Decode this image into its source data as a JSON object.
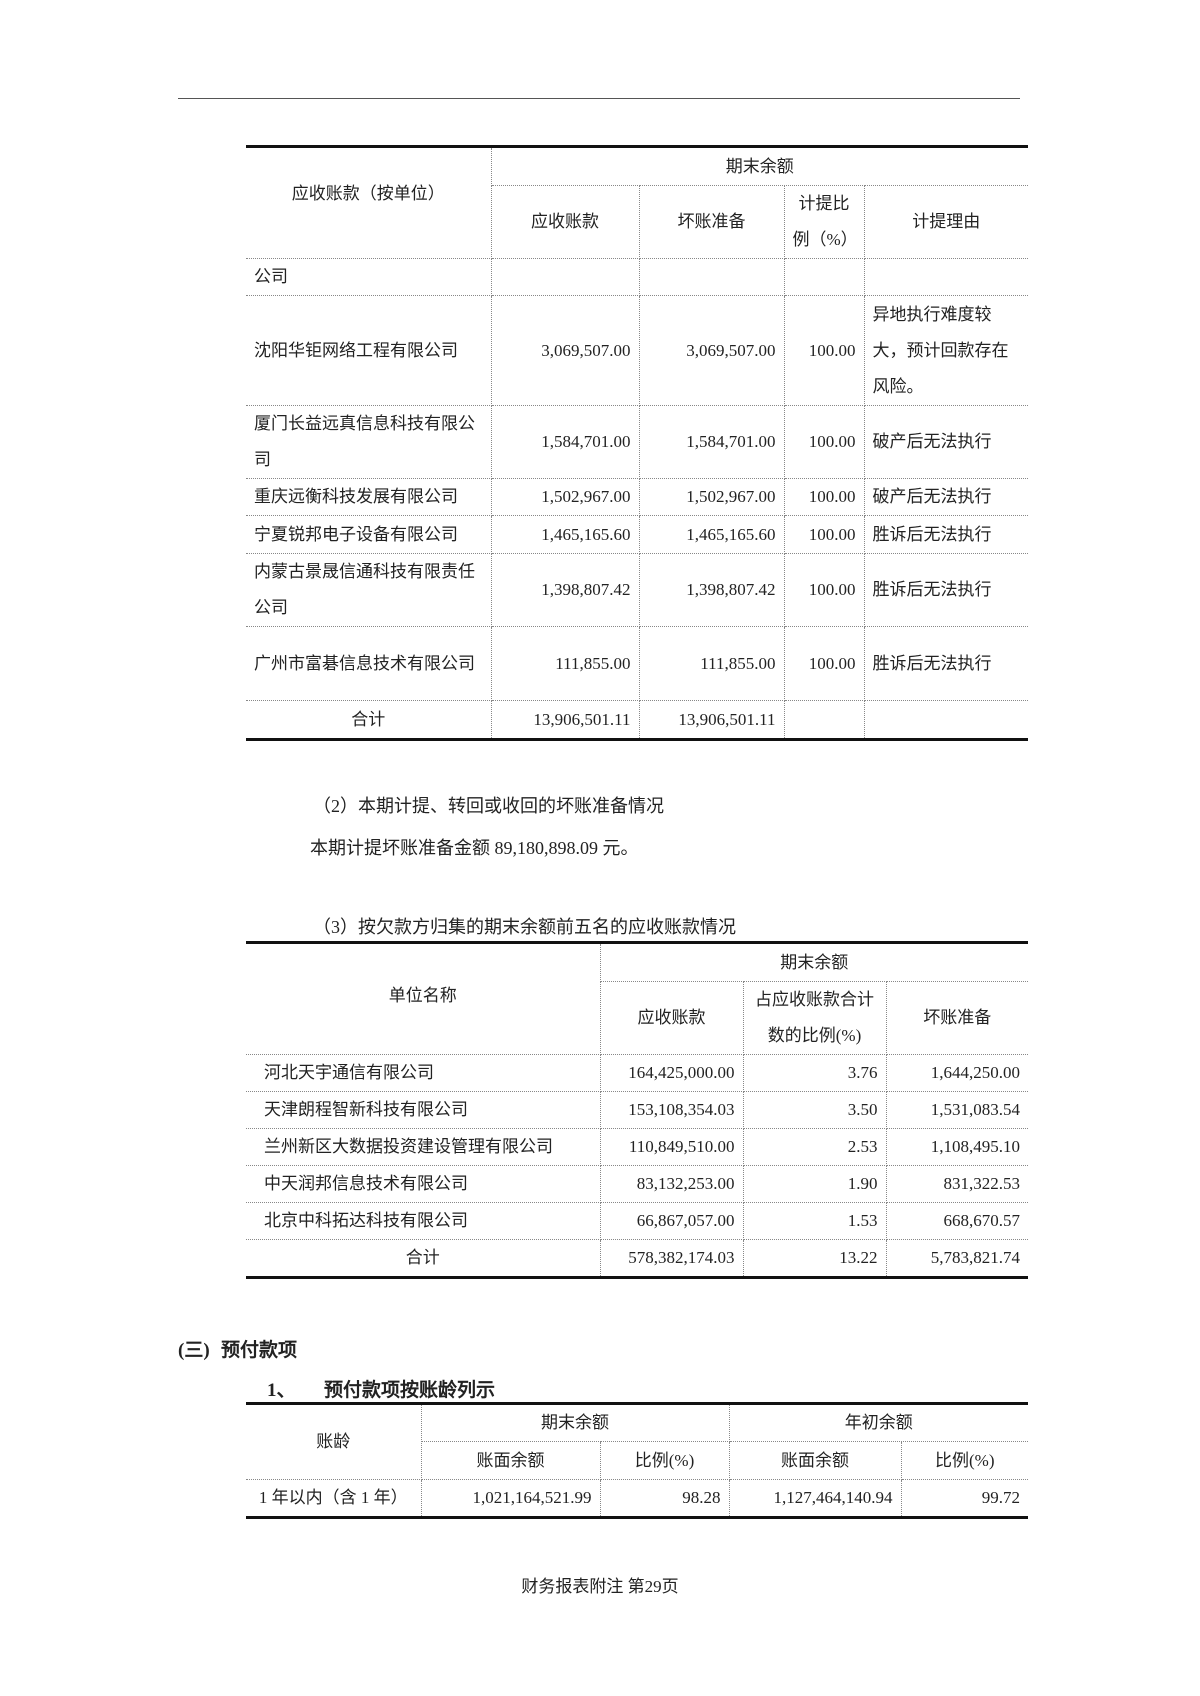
{
  "table1": {
    "header": {
      "unit": "应收账款（按单位）",
      "group": "期末余额",
      "receivable": "应收账款",
      "bad_debt": "坏账准备",
      "ratio": "计提比例（%）",
      "reason": "计提理由"
    },
    "rows": [
      {
        "name": "公司",
        "receivable": "",
        "bad_debt": "",
        "ratio": "",
        "reason": ""
      },
      {
        "name": "沈阳华钜网络工程有限公司",
        "receivable": "3,069,507.00",
        "bad_debt": "3,069,507.00",
        "ratio": "100.00",
        "reason": "异地执行难度较大，预计回款存在风险。"
      },
      {
        "name": "厦门长益远真信息科技有限公司",
        "receivable": "1,584,701.00",
        "bad_debt": "1,584,701.00",
        "ratio": "100.00",
        "reason": "破产后无法执行"
      },
      {
        "name": "重庆远衡科技发展有限公司",
        "receivable": "1,502,967.00",
        "bad_debt": "1,502,967.00",
        "ratio": "100.00",
        "reason": "破产后无法执行"
      },
      {
        "name": "宁夏锐邦电子设备有限公司",
        "receivable": "1,465,165.60",
        "bad_debt": "1,465,165.60",
        "ratio": "100.00",
        "reason": "胜诉后无法执行"
      },
      {
        "name": "内蒙古景晟信通科技有限责任公司",
        "receivable": "1,398,807.42",
        "bad_debt": "1,398,807.42",
        "ratio": "100.00",
        "reason": "胜诉后无法执行"
      },
      {
        "name": "广州市富碁信息技术有限公司",
        "receivable": "111,855.00",
        "bad_debt": "111,855.00",
        "ratio": "100.00",
        "reason": "胜诉后无法执行"
      }
    ],
    "total": {
      "name": "合计",
      "receivable": "13,906,501.11",
      "bad_debt": "13,906,501.11"
    }
  },
  "section2": {
    "title": "（2）本期计提、转回或收回的坏账准备情况",
    "text": "本期计提坏账准备金额 89,180,898.09 元。"
  },
  "section3": {
    "title": "（3）按欠款方归集的期末余额前五名的应收账款情况"
  },
  "table2": {
    "header": {
      "unit": "单位名称",
      "group": "期末余额",
      "receivable": "应收账款",
      "ratio": "占应收账款合计数的比例(%)",
      "bad_debt": "坏账准备"
    },
    "rows": [
      {
        "name": "河北天宇通信有限公司",
        "receivable": "164,425,000.00",
        "ratio": "3.76",
        "bad_debt": "1,644,250.00"
      },
      {
        "name": "天津朗程智新科技有限公司",
        "receivable": "153,108,354.03",
        "ratio": "3.50",
        "bad_debt": "1,531,083.54"
      },
      {
        "name": "兰州新区大数据投资建设管理有限公司",
        "receivable": "110,849,510.00",
        "ratio": "2.53",
        "bad_debt": "1,108,495.10"
      },
      {
        "name": "中天润邦信息技术有限公司",
        "receivable": "83,132,253.00",
        "ratio": "1.90",
        "bad_debt": "831,322.53"
      },
      {
        "name": "北京中科拓达科技有限公司",
        "receivable": "66,867,057.00",
        "ratio": "1.53",
        "bad_debt": "668,670.57"
      }
    ],
    "total": {
      "name": "合计",
      "receivable": "578,382,174.03",
      "ratio": "13.22",
      "bad_debt": "5,783,821.74"
    }
  },
  "section_prepay": {
    "num": "(三)",
    "title": "预付款项",
    "sub_num": "1、",
    "sub_title": "预付款项按账龄列示"
  },
  "table3": {
    "header": {
      "age": "账龄",
      "end": "期末余额",
      "begin": "年初余额",
      "book": "账面余额",
      "ratio": "比例(%)"
    },
    "rows": [
      {
        "age": "1 年以内（含 1 年）",
        "end_book": "1,021,164,521.99",
        "end_ratio": "98.28",
        "begin_book": "1,127,464,140.94",
        "begin_ratio": "99.72"
      }
    ]
  },
  "footer": "财务报表附注  第29页"
}
